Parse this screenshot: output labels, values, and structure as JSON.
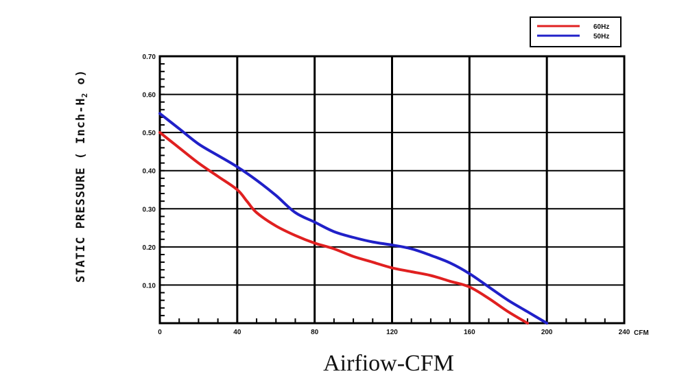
{
  "chart_data": {
    "type": "line",
    "title": "",
    "xlabel": "Airfiow-CFM",
    "x_unit": "CFM",
    "ylabel_prefix": "STATIC PRESSURE ( Inch-H",
    "ylabel_sub": "2",
    "ylabel_suffix": " o)",
    "xlim": [
      0,
      240
    ],
    "ylim": [
      0,
      0.7
    ],
    "x_ticks": [
      0,
      40,
      80,
      120,
      160,
      200,
      240
    ],
    "x_tick_labels": [
      "0",
      "40",
      "80",
      "120",
      "160",
      "200",
      "240"
    ],
    "y_ticks": [
      0.1,
      0.2,
      0.3,
      0.4,
      0.5,
      0.6,
      0.7
    ],
    "y_tick_labels": [
      "0.10",
      "0.20",
      "0.30",
      "0.40",
      "0.50",
      "0.60",
      "0.70"
    ],
    "grid": true,
    "legend_position": "top-right",
    "series": [
      {
        "name": "60Hz",
        "color": "#e02020",
        "x": [
          0,
          10,
          20,
          30,
          40,
          45,
          50,
          60,
          70,
          80,
          90,
          100,
          110,
          120,
          130,
          140,
          150,
          160,
          170,
          180,
          190
        ],
        "y": [
          0.5,
          0.46,
          0.42,
          0.385,
          0.35,
          0.32,
          0.29,
          0.255,
          0.23,
          0.21,
          0.195,
          0.175,
          0.16,
          0.145,
          0.135,
          0.125,
          0.11,
          0.095,
          0.065,
          0.03,
          0.0
        ]
      },
      {
        "name": "50Hz",
        "color": "#2020c8",
        "x": [
          0,
          10,
          20,
          30,
          40,
          50,
          60,
          70,
          80,
          90,
          100,
          110,
          120,
          130,
          140,
          150,
          160,
          170,
          180,
          190,
          200
        ],
        "y": [
          0.55,
          0.51,
          0.47,
          0.44,
          0.41,
          0.375,
          0.335,
          0.29,
          0.265,
          0.24,
          0.225,
          0.213,
          0.205,
          0.195,
          0.178,
          0.158,
          0.13,
          0.095,
          0.06,
          0.03,
          0.0
        ]
      }
    ]
  }
}
